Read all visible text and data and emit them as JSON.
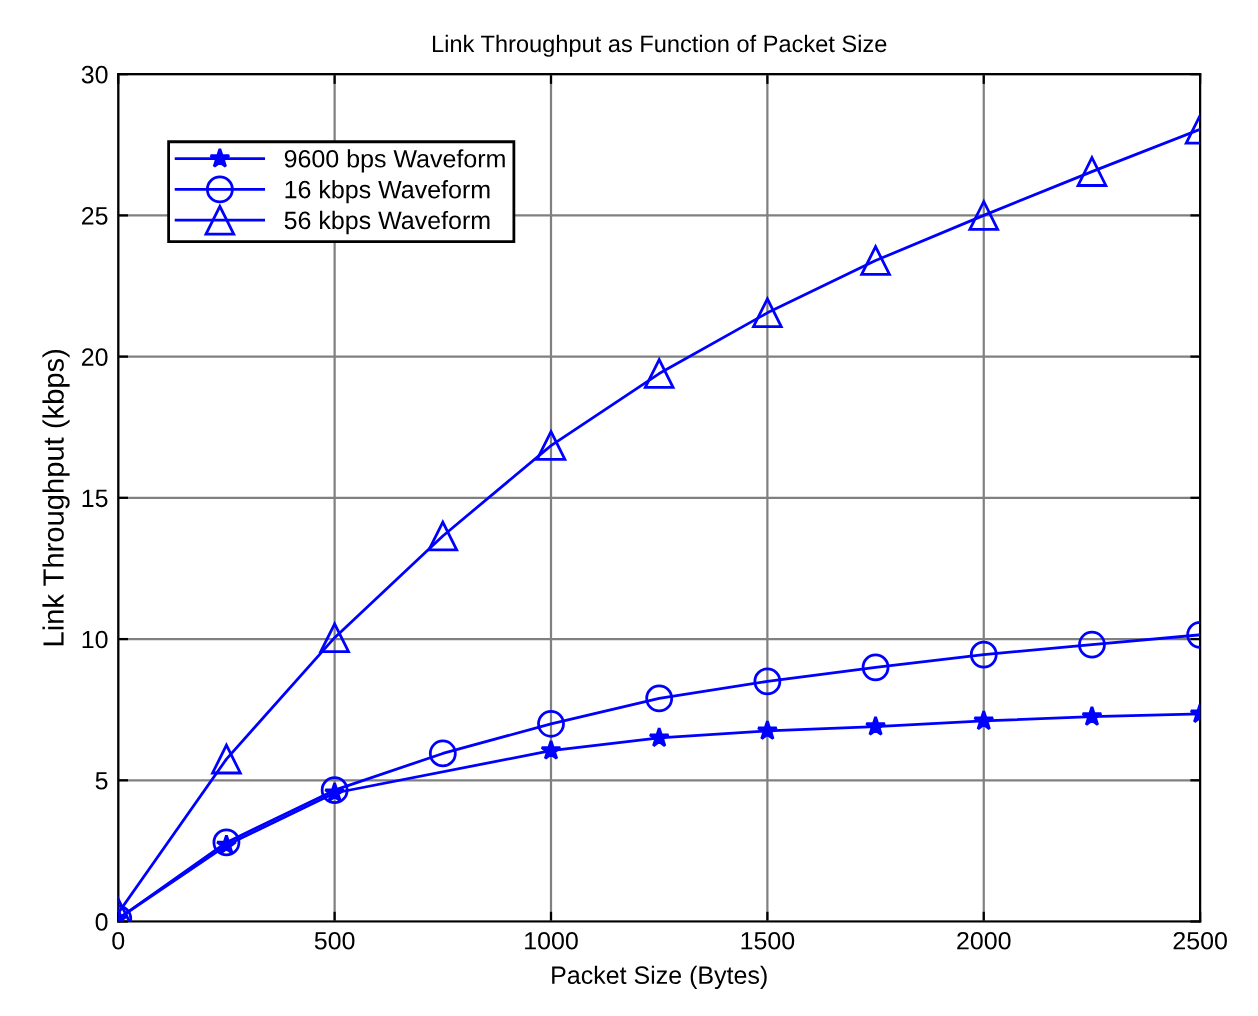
{
  "chart_data": {
    "type": "line",
    "title": "Link Throughput as Function of Packet Size",
    "xlabel": "Packet Size (Bytes)",
    "ylabel": "Link Throughput (kbps)",
    "xlim": [
      0,
      2500
    ],
    "xticks": [
      0,
      500,
      1000,
      1500,
      2000,
      2500
    ],
    "ylim": [
      0,
      30
    ],
    "yticks": [
      0,
      5,
      10,
      15,
      20,
      25,
      30
    ],
    "grid": true,
    "legend": "top left",
    "line_style": "solid",
    "series": [
      {
        "name": "9600 bps Waveform",
        "color": "#0000ff",
        "marker": "star",
        "x": [
          0,
          250,
          500,
          1000,
          1250,
          1500,
          1750,
          2000,
          2250,
          2500
        ],
        "values": [
          0.1,
          2.7,
          4.55,
          6.05,
          6.5,
          6.75,
          6.9,
          7.1,
          7.25,
          7.35
        ]
      },
      {
        "name": "16 kbps Waveform",
        "color": "#0000ff",
        "marker": "circle",
        "x": [
          0,
          250,
          500,
          750,
          1000,
          1250,
          1500,
          1750,
          2000,
          2250,
          2500
        ],
        "values": [
          0.1,
          2.8,
          4.65,
          5.95,
          7.0,
          7.9,
          8.5,
          9.0,
          9.45,
          9.8,
          10.15
        ]
      },
      {
        "name": "56 kbps Waveform",
        "color": "#0000ff",
        "marker": "triangle",
        "x": [
          0,
          250,
          500,
          750,
          1000,
          1250,
          1500,
          1750,
          2000,
          2250,
          2500
        ],
        "values": [
          0.3,
          5.75,
          10.05,
          13.65,
          16.85,
          19.4,
          21.55,
          23.4,
          25.0,
          26.55,
          28.05
        ]
      }
    ]
  }
}
